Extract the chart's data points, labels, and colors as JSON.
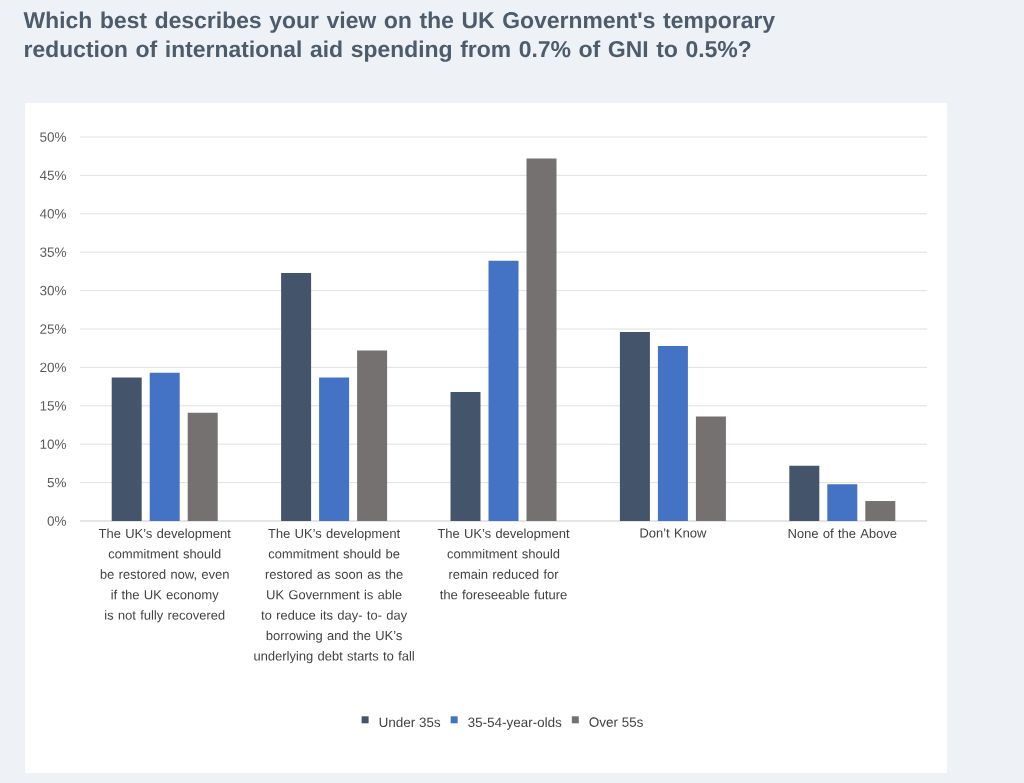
{
  "chart_data": {
    "type": "bar",
    "title": "Which best describes your view on the UK Government's temporary reduction of international aid spending from 0.7% of GNI to 0.5%?",
    "categories": [
      "The UK’s development commitment should be restored now, even if the UK economy is not fully recovered",
      "The UK’s development commitment should be restored as soon as the UK Government is able to reduce its day- to- day borrowing and the UK’s underlying debt starts to fall",
      "The UK’s development commitment should remain reduced for the foreseeable future",
      "Don’t Know",
      "None of the Above"
    ],
    "series": [
      {
        "name": "Under 35s",
        "color": "#44546a",
        "values": [
          18.7,
          32.3,
          16.8,
          24.6,
          7.2
        ]
      },
      {
        "name": "35-54-year-olds",
        "color": "#4472c4",
        "values": [
          19.3,
          18.7,
          33.9,
          22.8,
          4.8
        ]
      },
      {
        "name": "Over 55s",
        "color": "#767171",
        "values": [
          14.1,
          22.2,
          47.2,
          13.6,
          2.6
        ]
      }
    ],
    "ylim": [
      0,
      50
    ],
    "yticks": [
      {
        "value": 0,
        "label": "0%"
      },
      {
        "value": 5,
        "label": "5%"
      },
      {
        "value": 10,
        "label": "10%"
      },
      {
        "value": 15,
        "label": "15%"
      },
      {
        "value": 20,
        "label": "20%"
      },
      {
        "value": 25,
        "label": "25%"
      },
      {
        "value": 30,
        "label": "30%"
      },
      {
        "value": 35,
        "label": "35%"
      },
      {
        "value": 40,
        "label": "40%"
      },
      {
        "value": 45,
        "label": "45%"
      },
      {
        "value": 50,
        "label": "50%"
      }
    ],
    "grid": "y",
    "legend": "bottom"
  }
}
